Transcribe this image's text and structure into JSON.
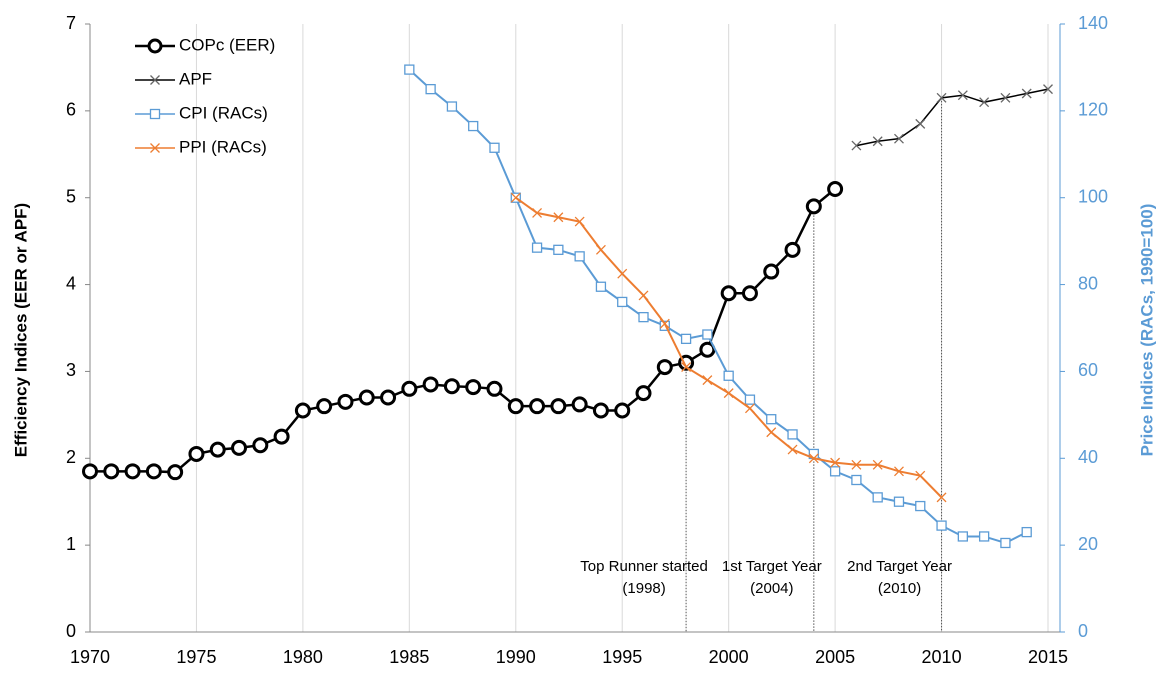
{
  "chart_data": {
    "type": "line",
    "y_label": "Efficiency Indices (EER or APF)",
    "y2_label": "Price Indices (RACs, 1990=100)",
    "xlim": [
      1970,
      2015
    ],
    "xticks": [
      1970,
      1975,
      1980,
      1985,
      1990,
      1995,
      2000,
      2005,
      2010,
      2015
    ],
    "ylim": [
      0,
      7
    ],
    "yticks": [
      0,
      1,
      2,
      3,
      4,
      5,
      6,
      7
    ],
    "y2lim": [
      0,
      140
    ],
    "y2ticks": [
      0,
      20,
      40,
      60,
      80,
      100,
      120,
      140
    ],
    "grid": true,
    "legend": "top-left",
    "series": [
      {
        "name": "COPc (EER)",
        "color": "#000000",
        "marker": "circle",
        "x": [
          1970,
          1971,
          1972,
          1973,
          1974,
          1975,
          1976,
          1977,
          1978,
          1979,
          1980,
          1981,
          1982,
          1983,
          1984,
          1985,
          1986,
          1987,
          1988,
          1989,
          1990,
          1991,
          1992,
          1993,
          1994,
          1995,
          1996,
          1997,
          1998,
          1999,
          2000,
          2001,
          2002,
          2003,
          2004,
          2005
        ],
        "values": [
          1.85,
          1.85,
          1.85,
          1.85,
          1.84,
          2.05,
          2.1,
          2.12,
          2.15,
          2.25,
          2.55,
          2.6,
          2.65,
          2.7,
          2.7,
          2.8,
          2.85,
          2.83,
          2.82,
          2.8,
          2.6,
          2.6,
          2.6,
          2.62,
          2.55,
          2.55,
          2.75,
          3.05,
          3.1,
          3.25,
          3.9,
          3.9,
          4.15,
          4.4,
          4.9,
          5.1
        ]
      },
      {
        "name": "APF",
        "color": "#000000",
        "marker": "x",
        "x": [
          2006,
          2007,
          2008,
          2009,
          2010,
          2011,
          2012,
          2013,
          2014,
          2015
        ],
        "values": [
          5.6,
          5.65,
          5.68,
          5.85,
          6.15,
          6.18,
          6.1,
          6.15,
          6.2,
          6.25
        ]
      },
      {
        "name": "CPI (RACs)",
        "color": "#5b9bd5",
        "marker": "square",
        "axis": "y2",
        "x": [
          1985,
          1986,
          1987,
          1988,
          1989,
          1990,
          1991,
          1992,
          1993,
          1994,
          1995,
          1996,
          1997,
          1998,
          1999,
          2000,
          2001,
          2002,
          2003,
          2004,
          2005,
          2006,
          2007,
          2008,
          2009,
          2010,
          2011,
          2012,
          2013,
          2014
        ],
        "values": [
          129.5,
          125,
          121,
          116.5,
          111.5,
          100,
          88.5,
          88,
          86.5,
          79.5,
          76,
          72.5,
          70.5,
          67.5,
          68.5,
          59,
          53.5,
          49,
          45.5,
          41,
          37,
          35,
          31,
          30,
          29,
          24.5,
          22,
          22,
          20.5,
          23
        ]
      },
      {
        "name": "PPI (RACs)",
        "color": "#ed7d31",
        "marker": "x",
        "axis": "y2",
        "x": [
          1990,
          1991,
          1992,
          1993,
          1994,
          1995,
          1996,
          1997,
          1998,
          1999,
          2000,
          2001,
          2002,
          2003,
          2004,
          2005,
          2006,
          2007,
          2008,
          2009,
          2010
        ],
        "values": [
          100,
          96.5,
          95.5,
          94.5,
          88,
          82.5,
          77.5,
          71,
          61,
          58,
          55,
          51.5,
          46,
          42,
          40,
          39,
          38.5,
          38.5,
          37,
          36,
          31
        ]
      }
    ],
    "annotations": [
      {
        "x": 1998,
        "lines": [
          "Top Runner  started",
          "(1998)"
        ]
      },
      {
        "x": 2004,
        "lines": [
          "1st Target Year",
          "(2004)"
        ]
      },
      {
        "x": 2010,
        "lines": [
          "2nd Target Year",
          "(2010)"
        ]
      }
    ]
  }
}
